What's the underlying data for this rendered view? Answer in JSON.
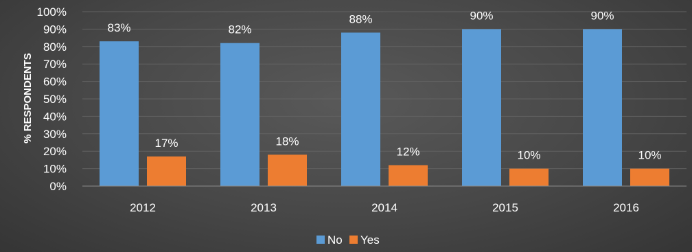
{
  "chart_data": {
    "type": "bar",
    "categories": [
      "2012",
      "2013",
      "2014",
      "2015",
      "2016"
    ],
    "series": [
      {
        "name": "No",
        "values": [
          83,
          82,
          88,
          90,
          90
        ],
        "labels": [
          "83%",
          "82%",
          "88%",
          "90%",
          "90%"
        ],
        "color": "#5b9bd5"
      },
      {
        "name": "Yes",
        "values": [
          17,
          18,
          12,
          10,
          10
        ],
        "labels": [
          "17%",
          "18%",
          "12%",
          "10%",
          "10%"
        ],
        "color": "#ed7d31"
      }
    ],
    "ylabel": "% RESPONDENTS",
    "xlabel": "",
    "ylim": [
      0,
      100
    ],
    "yticks": [
      0,
      10,
      20,
      30,
      40,
      50,
      60,
      70,
      80,
      90,
      100
    ],
    "ytick_labels": [
      "0%",
      "10%",
      "20%",
      "30%",
      "40%",
      "50%",
      "60%",
      "70%",
      "80%",
      "90%",
      "100%"
    ],
    "grid": true,
    "legend": "bottom-center"
  }
}
